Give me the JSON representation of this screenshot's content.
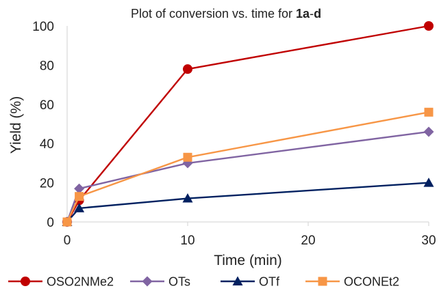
{
  "chart_data": {
    "type": "line",
    "title": {
      "prefix": "Plot of conversion vs. time for ",
      "bold_a": "1a",
      "dash": "-",
      "bold_b": "d"
    },
    "xlabel": "Time (min)",
    "ylabel": "Yield (%)",
    "xlim": [
      0,
      30
    ],
    "ylim": [
      0,
      100
    ],
    "xticks": [
      0,
      10,
      20,
      30
    ],
    "yticks": [
      0,
      20,
      40,
      60,
      80,
      100
    ],
    "grid": false,
    "legend_position": "bottom",
    "series": [
      {
        "name": "OSO2NMe2",
        "color": "#c00000",
        "marker": "circle",
        "x": [
          0,
          1,
          10,
          30
        ],
        "y": [
          0,
          11,
          78,
          100
        ]
      },
      {
        "name": "OTs",
        "color": "#8064a2",
        "marker": "diamond",
        "x": [
          0,
          1,
          10,
          30
        ],
        "y": [
          0,
          17,
          30,
          46
        ]
      },
      {
        "name": "OTf",
        "color": "#002060",
        "marker": "triangle",
        "x": [
          0,
          1,
          10,
          30
        ],
        "y": [
          0,
          7,
          12,
          20
        ]
      },
      {
        "name": "OCONEt2",
        "color": "#f79646",
        "marker": "square",
        "x": [
          0,
          1,
          10,
          30
        ],
        "y": [
          0,
          13,
          33,
          56
        ]
      }
    ]
  }
}
